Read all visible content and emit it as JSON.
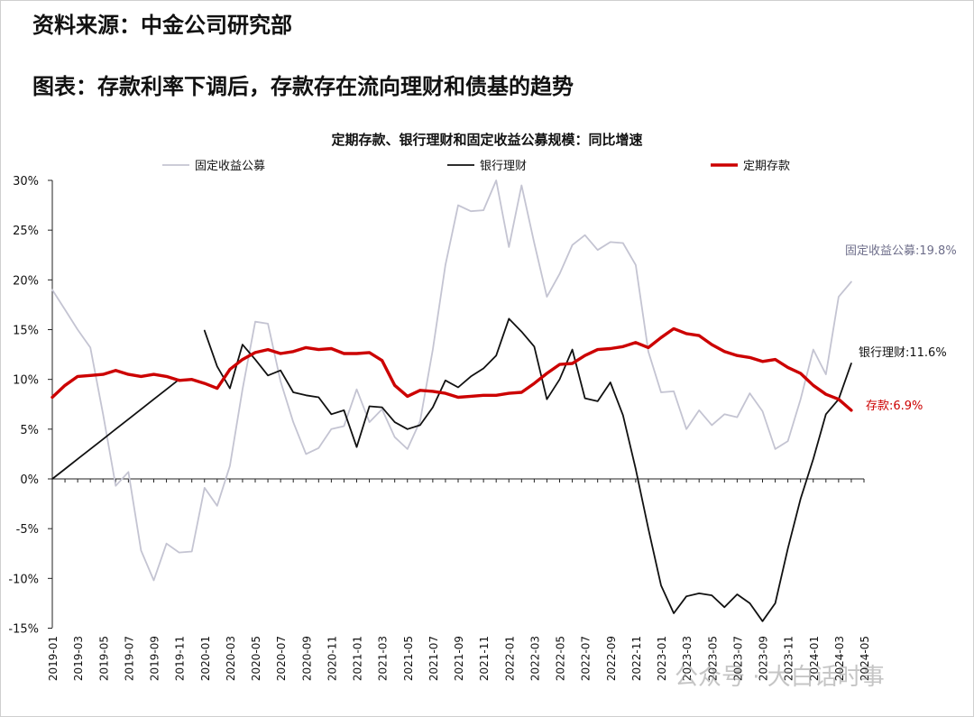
{
  "header": {
    "source": "资料来源：中金公司研究部",
    "figure_title": "图表：存款利率下调后，存款存在流向理财和债基的趋势"
  },
  "watermark": "公众号 · 大白话时事",
  "chart_data": {
    "type": "line",
    "title": "定期存款、银行理财和固定收益公募规模：同比增速",
    "xlabel": "",
    "ylabel": "",
    "ylim": [
      -15,
      30
    ],
    "yticks": [
      -15,
      -10,
      -5,
      0,
      5,
      10,
      15,
      20,
      25,
      30
    ],
    "ytick_labels": [
      "-15%",
      "-10%",
      "-5%",
      "0%",
      "5%",
      "10%",
      "15%",
      "20%",
      "25%",
      "30%"
    ],
    "xtick_labels": [
      "2019-01",
      "2019-03",
      "2019-05",
      "2019-07",
      "2019-09",
      "2019-11",
      "2020-01",
      "2020-03",
      "2020-05",
      "2020-07",
      "2020-09",
      "2020-11",
      "2021-01",
      "2021-03",
      "2021-05",
      "2021-07",
      "2021-09",
      "2021-11",
      "2022-01",
      "2022-03",
      "2022-05",
      "2022-07",
      "2022-09",
      "2022-11",
      "2023-01",
      "2023-03",
      "2023-05",
      "2023-07",
      "2023-09",
      "2023-11",
      "2024-01",
      "2024-03",
      "2024-05"
    ],
    "months": [
      "2019-01",
      "2019-02",
      "2019-03",
      "2019-04",
      "2019-05",
      "2019-06",
      "2019-07",
      "2019-08",
      "2019-09",
      "2019-10",
      "2019-11",
      "2019-12",
      "2020-01",
      "2020-02",
      "2020-03",
      "2020-04",
      "2020-05",
      "2020-06",
      "2020-07",
      "2020-08",
      "2020-09",
      "2020-10",
      "2020-11",
      "2020-12",
      "2021-01",
      "2021-02",
      "2021-03",
      "2021-04",
      "2021-05",
      "2021-06",
      "2021-07",
      "2021-08",
      "2021-09",
      "2021-10",
      "2021-11",
      "2021-12",
      "2022-01",
      "2022-02",
      "2022-03",
      "2022-04",
      "2022-05",
      "2022-06",
      "2022-07",
      "2022-08",
      "2022-09",
      "2022-10",
      "2022-11",
      "2022-12",
      "2023-01",
      "2023-02",
      "2023-03",
      "2023-04",
      "2023-05",
      "2023-06",
      "2023-07",
      "2023-08",
      "2023-09",
      "2023-10",
      "2023-11",
      "2023-12",
      "2024-01",
      "2024-02",
      "2024-03",
      "2024-04",
      "2024-05"
    ],
    "grid": false,
    "legend_position": "top",
    "series": [
      {
        "name": "固定收益公募",
        "color": "#c4c4d2",
        "width": 1.8,
        "values": [
          19,
          17,
          15,
          13.2,
          6.5,
          -0.7,
          0.7,
          -7.2,
          -10.2,
          -6.5,
          -7.4,
          -7.3,
          -0.9,
          -2.7,
          1.3,
          9,
          15.8,
          15.6,
          9.8,
          5.7,
          2.5,
          3.1,
          5,
          5.3,
          9,
          5.7,
          7,
          4.2,
          3,
          5.8,
          13,
          21.5,
          27.5,
          26.9,
          27,
          30,
          23.3,
          29.5,
          23.7,
          18.3,
          20.6,
          23.5,
          24.5,
          23,
          23.8,
          23.7,
          21.5,
          12.8,
          8.7,
          8.8,
          5,
          6.9,
          5.4,
          6.5,
          6.2,
          8.6,
          6.8,
          3,
          3.8,
          8,
          13,
          10.5,
          18.3,
          19.8,
          null
        ]
      },
      {
        "name": "银行理财",
        "color": "#111111",
        "width": 1.8,
        "values": [
          0,
          1,
          2,
          3,
          4,
          5,
          6,
          7,
          8,
          9,
          10,
          null,
          14.9,
          11.3,
          9.1,
          13.5,
          12,
          10.4,
          10.9,
          8.7,
          8.4,
          8.2,
          6.5,
          6.9,
          3.2,
          7.3,
          7.2,
          5.7,
          5,
          5.4,
          7.2,
          9.9,
          9.2,
          10.3,
          11.1,
          12.4,
          16.1,
          14.8,
          13.3,
          8,
          10,
          13,
          8.1,
          7.8,
          9.7,
          6.4,
          1,
          -5,
          -10.7,
          -13.5,
          -11.8,
          -11.5,
          -11.7,
          -12.9,
          -11.6,
          -12.5,
          -14.3,
          -12.5,
          -7,
          -2,
          2,
          6.5,
          8,
          11.6,
          null
        ]
      },
      {
        "name": "定期存款",
        "color": "#cc0000",
        "width": 3.4,
        "values": [
          8.2,
          9.4,
          10.3,
          10.4,
          10.5,
          10.9,
          10.5,
          10.3,
          10.5,
          10.3,
          9.9,
          10,
          9.6,
          9.1,
          11,
          12,
          12.7,
          13,
          12.6,
          12.8,
          13.2,
          13,
          13.1,
          12.6,
          12.6,
          12.7,
          11.9,
          9.4,
          8.3,
          8.9,
          8.8,
          8.6,
          8.2,
          8.3,
          8.4,
          8.4,
          8.6,
          8.7,
          9.6,
          10.6,
          11.5,
          11.6,
          12.4,
          13,
          13.1,
          13.3,
          13.7,
          13.2,
          14.2,
          15.1,
          14.6,
          14.4,
          13.5,
          12.8,
          12.4,
          12.2,
          11.8,
          12,
          11.2,
          10.6,
          9.4,
          8.5,
          8,
          6.9,
          null
        ]
      }
    ],
    "end_labels": [
      {
        "series": 0,
        "text": "固定收益公募:19.8%",
        "color": "#6e6e8a"
      },
      {
        "series": 1,
        "text": "银行理财:11.6%",
        "color": "#111111"
      },
      {
        "series": 2,
        "text": "存款:6.9%",
        "color": "#cc0000"
      }
    ]
  }
}
